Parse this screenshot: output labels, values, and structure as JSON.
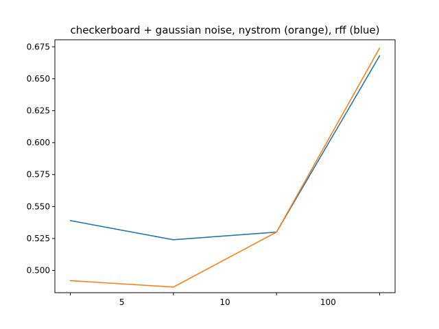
{
  "chart_data": {
    "type": "line",
    "title": "checkerboard + gaussian noise, nystrom (orange), rff (blue)",
    "xlabel": "",
    "ylabel": "",
    "x": [
      0,
      1,
      2,
      3
    ],
    "x_ticks": [
      {
        "pos": 0.5,
        "label": "5"
      },
      {
        "pos": 1.5,
        "label": "10"
      },
      {
        "pos": 2.5,
        "label": "100"
      }
    ],
    "xlim": [
      -0.15,
      3.15
    ],
    "ylim": [
      0.4826,
      0.6805
    ],
    "y_ticks": [
      0.5,
      0.525,
      0.55,
      0.575,
      0.6,
      0.625,
      0.65,
      0.675
    ],
    "y_tick_labels": [
      "0.500",
      "0.525",
      "0.550",
      "0.575",
      "0.600",
      "0.625",
      "0.650",
      "0.675"
    ],
    "series": [
      {
        "values": [
          0.539,
          0.524,
          0.53,
          0.668
        ],
        "color": "#1f77b4"
      },
      {
        "values": [
          0.492,
          0.487,
          0.53,
          0.674
        ],
        "color": "#ff7f0e"
      }
    ],
    "grid": false,
    "legend": "none"
  }
}
